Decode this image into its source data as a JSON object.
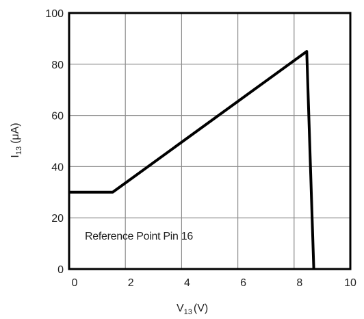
{
  "chart_data": {
    "type": "line",
    "title": "",
    "xlabel": {
      "main": "V",
      "sub": "13",
      "unit": "(V)"
    },
    "ylabel": {
      "main": "I",
      "sub": "13",
      "unit": "(μA)"
    },
    "xlim": [
      0,
      10
    ],
    "ylim": [
      0,
      100
    ],
    "x_ticks": [
      0,
      2,
      4,
      6,
      8,
      10
    ],
    "y_ticks": [
      0,
      20,
      40,
      60,
      80,
      100
    ],
    "grid": true,
    "annotation": "Reference Point Pin 16",
    "series": [
      {
        "x": [
          0,
          1.55,
          8.45,
          8.7
        ],
        "y": [
          30,
          30,
          85,
          0
        ]
      }
    ],
    "line_color": "#000000"
  }
}
